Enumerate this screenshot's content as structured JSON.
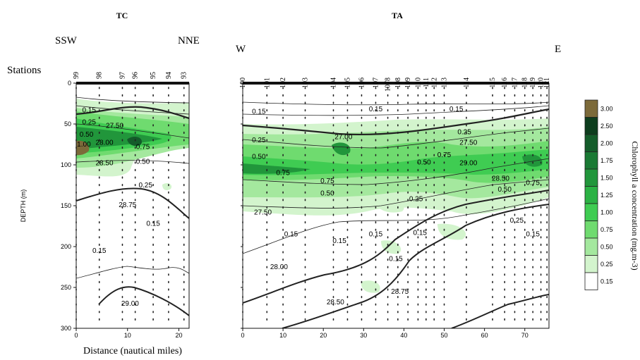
{
  "chart_data": [
    {
      "type": "heatmap",
      "title": "TC",
      "direction_left": "SSW",
      "direction_right": "NNE",
      "stations_label": "Stations",
      "stations": [
        {
          "label": "99",
          "x": 0
        },
        {
          "label": "98",
          "x": 4.5
        },
        {
          "label": "97",
          "x": 9
        },
        {
          "label": "96",
          "x": 11.5
        },
        {
          "label": "95",
          "x": 15
        },
        {
          "label": "94",
          "x": 18
        },
        {
          "label": "93",
          "x": 21
        }
      ],
      "xlabel": "Distance (nautical miles)",
      "ylabel": "DEPTH (m)",
      "xlim": [
        0,
        22
      ],
      "ylim": [
        0,
        300
      ],
      "xticks": [
        "0",
        "10",
        "20"
      ],
      "xtick_values": [
        0,
        10,
        20
      ],
      "yticks": [
        "0",
        "50",
        "100",
        "150",
        "200",
        "250",
        "300"
      ],
      "ytick_values": [
        0,
        50,
        100,
        150,
        200,
        250,
        300
      ],
      "chlorophyll_labels": [
        {
          "text": "0.15",
          "x": 2.5,
          "y": 33
        },
        {
          "text": "0.25",
          "x": 2.5,
          "y": 48
        },
        {
          "text": "0.50",
          "x": 2,
          "y": 63
        },
        {
          "text": "1.00",
          "x": 1.5,
          "y": 75
        },
        {
          "text": "0.75",
          "x": 13,
          "y": 78
        },
        {
          "text": "0.50",
          "x": 13,
          "y": 96
        },
        {
          "text": "0.25",
          "x": 13.5,
          "y": 125
        },
        {
          "text": "0.15",
          "x": 15,
          "y": 172
        },
        {
          "text": "0.15",
          "x": 4.5,
          "y": 205
        }
      ],
      "temperature_labels": [
        {
          "text": "27.50",
          "x": 7.5,
          "y": 52
        },
        {
          "text": "28.00",
          "x": 5.5,
          "y": 73
        },
        {
          "text": "28.50",
          "x": 5.5,
          "y": 98
        },
        {
          "text": "28.75",
          "x": 10,
          "y": 149
        },
        {
          "text": "29.00",
          "x": 10.5,
          "y": 270
        }
      ]
    },
    {
      "type": "heatmap",
      "title": "TA",
      "direction_left": "W",
      "direction_right": "E",
      "stations": [
        {
          "label": "100",
          "x": 0
        },
        {
          "label": "101",
          "x": 6
        },
        {
          "label": "102",
          "x": 10
        },
        {
          "label": "103",
          "x": 15.5
        },
        {
          "label": "104",
          "x": 22.5
        },
        {
          "label": "105",
          "x": 26
        },
        {
          "label": "106",
          "x": 29.5
        },
        {
          "label": "107",
          "x": 33
        },
        {
          "label": "1078",
          "x": 36
        },
        {
          "label": "108",
          "x": 38.5
        },
        {
          "label": "109",
          "x": 41
        },
        {
          "label": "110",
          "x": 43.5
        },
        {
          "label": "111",
          "x": 45.5
        },
        {
          "label": "112",
          "x": 47.5
        },
        {
          "label": "113",
          "x": 50
        },
        {
          "label": "114",
          "x": 55.5
        },
        {
          "label": "115",
          "x": 62
        },
        {
          "label": "116",
          "x": 65
        },
        {
          "label": "117",
          "x": 67.5
        },
        {
          "label": "118",
          "x": 70
        },
        {
          "label": "119",
          "x": 72
        },
        {
          "label": "120",
          "x": 74
        },
        {
          "label": "121",
          "x": 75.5
        }
      ],
      "xlim": [
        0,
        76
      ],
      "ylim": [
        0,
        300
      ],
      "xticks": [
        "0",
        "10",
        "20",
        "30",
        "40",
        "50",
        "60",
        "70"
      ],
      "xtick_values": [
        0,
        10,
        20,
        30,
        40,
        50,
        60,
        70
      ],
      "chlorophyll_labels": [
        {
          "text": "0.15",
          "x": 4,
          "y": 35
        },
        {
          "text": "0.15",
          "x": 33,
          "y": 32
        },
        {
          "text": "0.15",
          "x": 53,
          "y": 32
        },
        {
          "text": "0.25",
          "x": 4,
          "y": 70
        },
        {
          "text": "0.25",
          "x": 55,
          "y": 60
        },
        {
          "text": "0.50",
          "x": 4,
          "y": 90
        },
        {
          "text": "0.75",
          "x": 10,
          "y": 110
        },
        {
          "text": "0.75",
          "x": 21,
          "y": 120
        },
        {
          "text": "0.50",
          "x": 21,
          "y": 135
        },
        {
          "text": "0.50",
          "x": 45,
          "y": 97
        },
        {
          "text": "0.75",
          "x": 50,
          "y": 88
        },
        {
          "text": "0.25",
          "x": 43,
          "y": 142
        },
        {
          "text": "0.15",
          "x": 33,
          "y": 185
        },
        {
          "text": "0.15",
          "x": 44,
          "y": 183
        },
        {
          "text": "0.15",
          "x": 12,
          "y": 185
        },
        {
          "text": "0.15",
          "x": 24,
          "y": 193
        },
        {
          "text": "0.15",
          "x": 38,
          "y": 215
        },
        {
          "text": "0.15",
          "x": 72,
          "y": 185
        },
        {
          "text": "0.50",
          "x": 65,
          "y": 130
        },
        {
          "text": "0.75",
          "x": 72,
          "y": 122
        },
        {
          "text": "0.25",
          "x": 68,
          "y": 168
        }
      ],
      "temperature_labels": [
        {
          "text": "27.00",
          "x": 25,
          "y": 66
        },
        {
          "text": "27.50",
          "x": 56,
          "y": 73
        },
        {
          "text": "29.00",
          "x": 56,
          "y": 98
        },
        {
          "text": "28.50",
          "x": 64,
          "y": 117
        },
        {
          "text": "27.50",
          "x": 5,
          "y": 158
        },
        {
          "text": "28.00",
          "x": 9,
          "y": 225
        },
        {
          "text": "28.50",
          "x": 23,
          "y": 268
        },
        {
          "text": "28.75",
          "x": 39,
          "y": 255
        }
      ]
    }
  ],
  "colorbar": {
    "title": "Chlorophyll a concentration (mg.m-3)",
    "levels": [
      {
        "label": "3.00",
        "color": "#7c6a3a"
      },
      {
        "label": "2.50",
        "color": "#0d3d1d"
      },
      {
        "label": "2.00",
        "color": "#145c2a"
      },
      {
        "label": "1.75",
        "color": "#1a7a34"
      },
      {
        "label": "1.50",
        "color": "#21963b"
      },
      {
        "label": "1.25",
        "color": "#2bb244"
      },
      {
        "label": "1.00",
        "color": "#3fcc52"
      },
      {
        "label": "0.75",
        "color": "#6fdb6f"
      },
      {
        "label": "0.50",
        "color": "#a4e89e"
      },
      {
        "label": "0.25",
        "color": "#d3f4cd"
      },
      {
        "label": "0.15",
        "color": "#ffffff"
      }
    ]
  }
}
